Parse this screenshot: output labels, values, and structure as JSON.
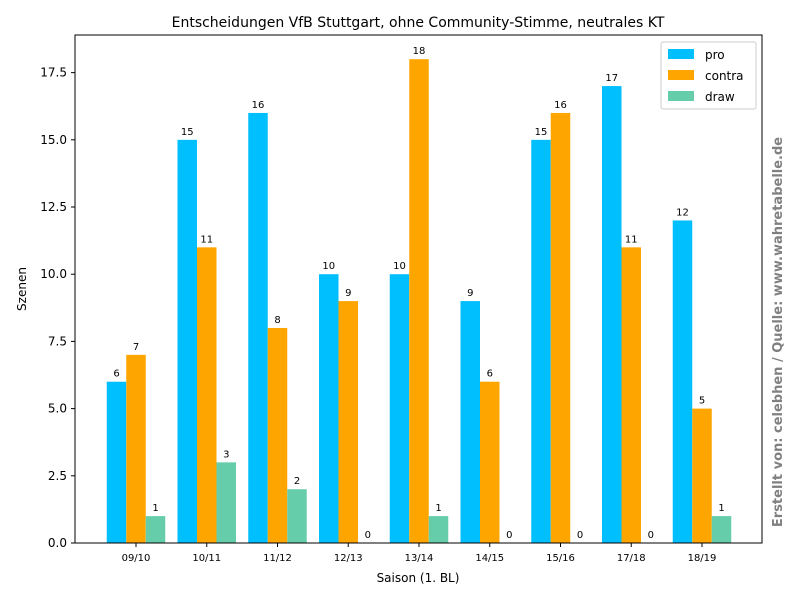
{
  "chart_data": {
    "type": "bar",
    "title": "Entscheidungen VfB Stuttgart, ohne Community-Stimme, neutrales KT",
    "xlabel": "Saison (1. BL)",
    "ylabel": "Szenen",
    "categories": [
      "09/10",
      "10/11",
      "11/12",
      "12/13",
      "13/14",
      "14/15",
      "15/16",
      "17/18",
      "18/19"
    ],
    "series": [
      {
        "name": "pro",
        "color": "#00bfff",
        "values": [
          6,
          15,
          16,
          10,
          10,
          9,
          15,
          17,
          12
        ]
      },
      {
        "name": "contra",
        "color": "#ffa500",
        "values": [
          7,
          11,
          8,
          9,
          18,
          6,
          16,
          11,
          5
        ]
      },
      {
        "name": "draw",
        "color": "#66cdaa",
        "values": [
          1,
          3,
          2,
          0,
          1,
          0,
          0,
          0,
          1
        ]
      }
    ],
    "ylim": [
      0,
      18.9
    ],
    "yticks": [
      "0.0",
      "2.5",
      "5.0",
      "7.5",
      "10.0",
      "12.5",
      "15.0",
      "17.5"
    ],
    "legend_position": "top-right",
    "grid": false
  },
  "watermark": "Erstellt von: celebhen / Quelle: www.wahretabelle.de"
}
